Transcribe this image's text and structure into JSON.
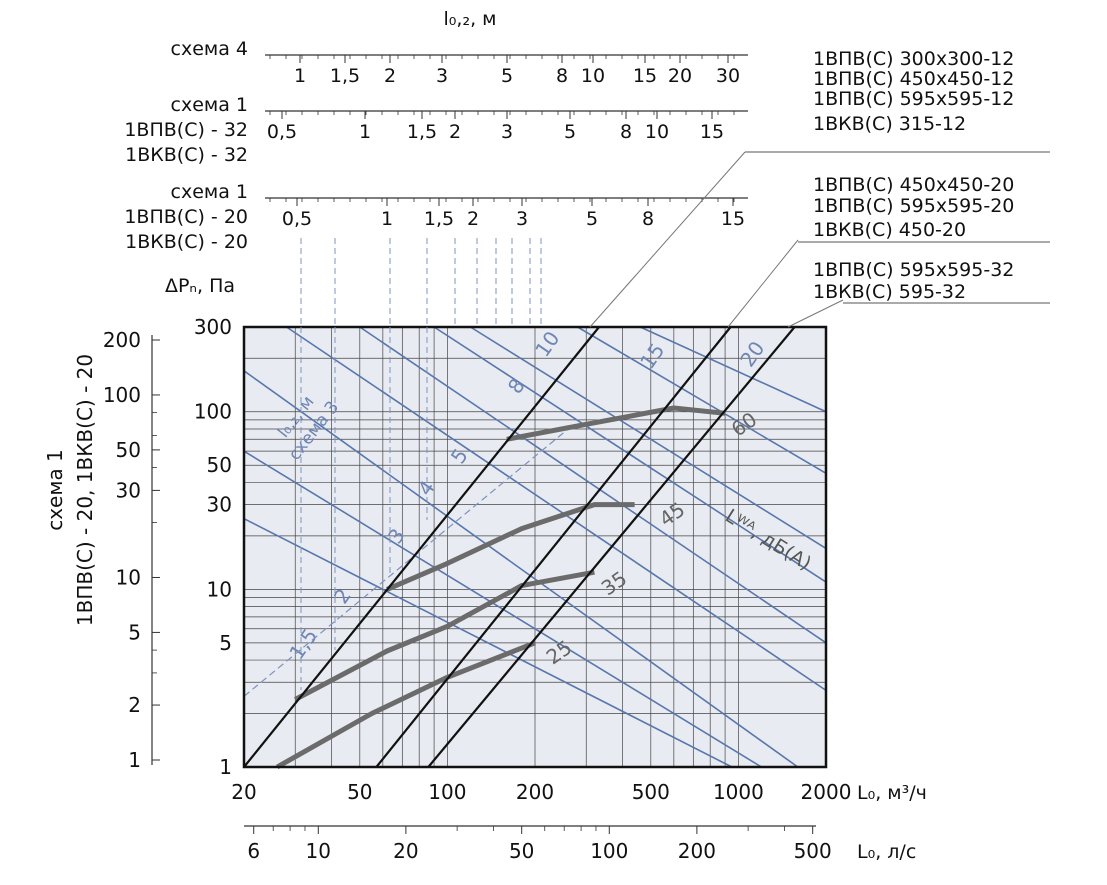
{
  "chart_data": {
    "type": "line",
    "xlabel": "L₀, м³/ч",
    "xlabel2": "L₀, л/с",
    "ylabel": "ΔPₙ, Па",
    "left_axis_label": "схема 1\n1ВПВ(С) - 20, 1ВКВ(С) - 20",
    "top_axis_label": "l₀,₂, м",
    "throw_curve_label": "l₀,₂, м\nсхема 3",
    "noise_label": "Lᵂᴬ, дБ(А)",
    "xlim": [
      20,
      2000
    ],
    "ylim": [
      1,
      300
    ],
    "x_ticks_m3h": [
      "20",
      "50",
      "100",
      "200",
      "500",
      "1000",
      "2000"
    ],
    "x_ticks_ls": [
      "6",
      "10",
      "20",
      "50",
      "100",
      "200",
      "500"
    ],
    "y_ticks": [
      "1",
      "5",
      "10",
      "30",
      "50",
      "100",
      "300"
    ],
    "left_axis_ticks": [
      "1",
      "2",
      "5",
      "10",
      "30",
      "50",
      "100",
      "200"
    ],
    "scales": [
      {
        "name": "схема 4",
        "extra": [],
        "ticks": [
          "1",
          "1,5",
          "2",
          "3",
          "5",
          "8",
          "10",
          "15",
          "20",
          "30"
        ]
      },
      {
        "name": "схема 1",
        "extra": [
          "1ВПВ(С) - 32",
          "1ВКВ(С) - 32"
        ],
        "ticks": [
          "0,5",
          "1",
          "1,5",
          "2",
          "3",
          "5",
          "8",
          "10",
          "15"
        ]
      },
      {
        "name": "схема 1",
        "extra": [
          "1ВПВ(С) - 20",
          "1ВКВ(С) - 20"
        ],
        "ticks": [
          "0,5",
          "1",
          "1,5",
          "2",
          "3",
          "5",
          "8",
          "15"
        ]
      }
    ],
    "series": [
      {
        "name": "1ВПВ(С) 300x300-12\n1ВПВ(С) 450x450-12\n1ВПВ(С) 595x595-12\n1ВКВ(С) 315-12",
        "points": [
          [
            20,
            1
          ],
          [
            332,
            300
          ]
        ]
      },
      {
        "name": "1ВПВ(С) 450x450-20\n1ВПВ(С) 595x595-20\n1ВКВ(С) 450-20",
        "points": [
          [
            57,
            1
          ],
          [
            940,
            300
          ]
        ]
      },
      {
        "name": "1ВПВ(С) 595x595-32\n1ВКВ(С) 595-32",
        "points": [
          [
            86,
            1
          ],
          [
            1560,
            300
          ]
        ]
      }
    ],
    "noise_curves": [
      {
        "label": "25",
        "points": [
          [
            26,
            1
          ],
          [
            55,
            2
          ],
          [
            100,
            3.2
          ],
          [
            200,
            5
          ]
        ]
      },
      {
        "label": "35",
        "points": [
          [
            30,
            2.4
          ],
          [
            62,
            4.5
          ],
          [
            100,
            6.2
          ],
          [
            180,
            10.5
          ],
          [
            320,
            12.5
          ]
        ]
      },
      {
        "label": "45",
        "points": [
          [
            62,
            10
          ],
          [
            100,
            14
          ],
          [
            180,
            22
          ],
          [
            320,
            30
          ],
          [
            440,
            30
          ]
        ]
      },
      {
        "label": "60",
        "points": [
          [
            160,
            70
          ],
          [
            300,
            85
          ],
          [
            600,
            105
          ],
          [
            900,
            98
          ]
        ]
      }
    ],
    "throw_lines": [
      "1,5",
      "2",
      "3",
      "4",
      "5",
      "8",
      "10",
      "15",
      "20"
    ],
    "throw_line_points": [
      [
        [
          20,
          25
        ],
        [
          950,
          1
        ]
      ],
      [
        [
          20,
          60
        ],
        [
          1200,
          1
        ]
      ],
      [
        [
          20,
          170
        ],
        [
          1600,
          1
        ]
      ],
      [
        [
          28,
          300
        ],
        [
          2000,
          2.7
        ]
      ],
      [
        [
          50,
          300
        ],
        [
          2000,
          5
        ]
      ],
      [
        [
          90,
          300
        ],
        [
          2000,
          11
        ]
      ],
      [
        [
          120,
          300
        ],
        [
          2000,
          17
        ]
      ],
      [
        [
          280,
          300
        ],
        [
          2000,
          45
        ]
      ],
      [
        [
          460,
          300
        ],
        [
          2000,
          100
        ]
      ]
    ],
    "schema3_points": [
      [
        20,
        2.5
      ],
      [
        260,
        80
      ]
    ]
  }
}
